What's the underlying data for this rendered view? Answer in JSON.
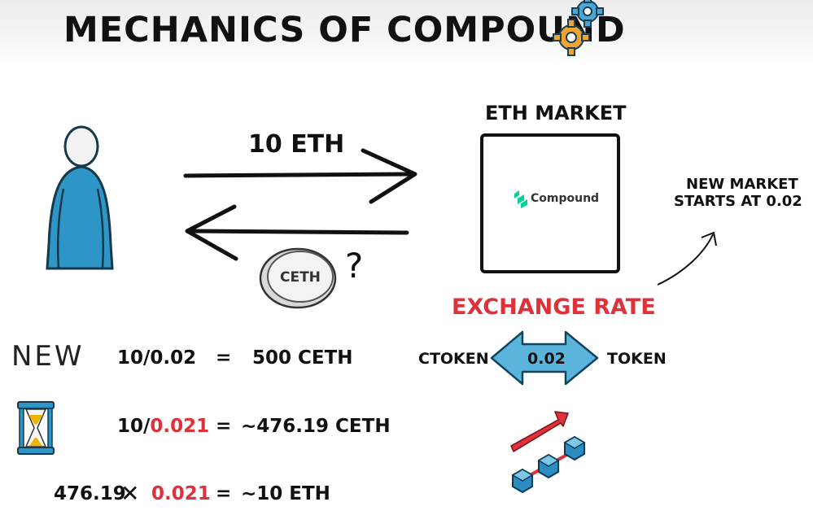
{
  "title": "MECHANICS OF COMPOUND",
  "arrow_top_label": "10 ETH",
  "market": {
    "heading": "ETH MARKET",
    "logo_text": "Compound"
  },
  "coin_label": "CETH",
  "question_mark": "?",
  "note": {
    "line1": "NEW MARKET",
    "line2": "STARTS AT 0.02"
  },
  "exchange_rate": {
    "heading": "EXCHANGE RATE",
    "left": "CTOKEN",
    "value": "0.02",
    "right": "TOKEN"
  },
  "rows": [
    {
      "prefix": "NEW",
      "a": "10",
      "op": "/",
      "b": "0.02",
      "eq": "=",
      "result": "500 CETH"
    },
    {
      "prefix_icon": "hourglass-icon",
      "a": "10",
      "op": "/",
      "b": "0.021",
      "eq": "=",
      "result": "~476.19 CETH"
    },
    {
      "a": "476.19",
      "op": "✕",
      "b": "0.021",
      "eq": "=",
      "result": "~10 ETH"
    }
  ],
  "colors": {
    "person_blue": "#2e96c6",
    "highlight_red": "#e0303a",
    "arrow_blue": "#5ab4dc",
    "gear_orange": "#f0a431",
    "gear_blue": "#4aa6d2",
    "cube_blue": "#2a8cc0",
    "compound_green": "#00d395"
  }
}
